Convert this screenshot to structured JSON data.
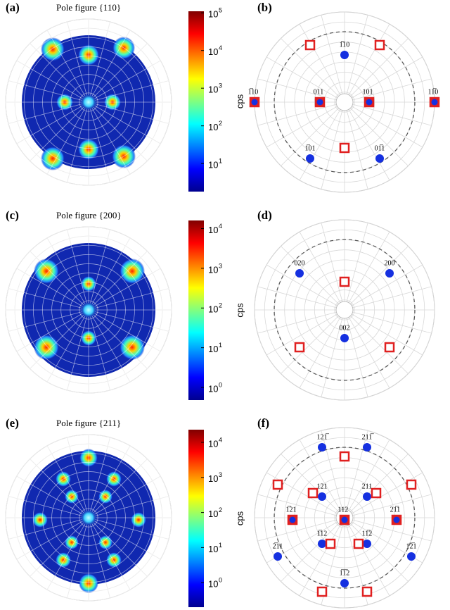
{
  "panels": [
    {
      "label": "(a)",
      "title": "Pole figure {110}",
      "colorbar": {
        "label": "cps",
        "range": [
          1.8,
          110000
        ],
        "ticks": [
          {
            "value": 10,
            "label": "10",
            "exponent": "1"
          },
          {
            "value": 100,
            "label": "10",
            "exponent": "2"
          },
          {
            "value": 1000,
            "label": "10",
            "exponent": "3"
          },
          {
            "value": 10000,
            "label": "10",
            "exponent": "4"
          },
          {
            "value": 100000,
            "label": "10",
            "exponent": "5"
          }
        ]
      }
    },
    {
      "label": "(b)",
      "markers": [
        {
          "kind": "circle",
          "text": "1̅10"
        },
        {
          "kind": "both",
          "text": "1̅10"
        },
        {
          "kind": "both",
          "text": "11̅0"
        },
        {
          "kind": "both",
          "text": "011"
        },
        {
          "kind": "both",
          "text": "101"
        },
        {
          "kind": "circle",
          "text": "1̅01"
        },
        {
          "kind": "circle",
          "text": "01̅1"
        },
        {
          "kind": "square"
        },
        {
          "kind": "square"
        },
        {
          "kind": "square"
        }
      ]
    },
    {
      "label": "(c)",
      "title": "Pole figure {200}",
      "colorbar": {
        "label": "cps",
        "range": [
          0.48,
          16000
        ],
        "ticks": [
          {
            "value": 1,
            "label": "10",
            "exponent": "0"
          },
          {
            "value": 10,
            "label": "10",
            "exponent": "1"
          },
          {
            "value": 100,
            "label": "10",
            "exponent": "2"
          },
          {
            "value": 1000,
            "label": "10",
            "exponent": "3"
          },
          {
            "value": 10000,
            "label": "10",
            "exponent": "4"
          }
        ]
      }
    },
    {
      "label": "(d)",
      "markers": [
        {
          "kind": "circle",
          "text": "020"
        },
        {
          "kind": "circle",
          "text": "200"
        },
        {
          "kind": "circle",
          "text": "002"
        },
        {
          "kind": "square"
        },
        {
          "kind": "square"
        },
        {
          "kind": "square"
        }
      ]
    },
    {
      "label": "(e)",
      "title": "Pole figure {211}",
      "colorbar": {
        "label": "cps",
        "range": [
          0.2,
          23000
        ],
        "ticks": [
          {
            "value": 1,
            "label": "10",
            "exponent": "0"
          },
          {
            "value": 10,
            "label": "10",
            "exponent": "1"
          },
          {
            "value": 100,
            "label": "10",
            "exponent": "2"
          },
          {
            "value": 1000,
            "label": "10",
            "exponent": "3"
          },
          {
            "value": 10000,
            "label": "10",
            "exponent": "4"
          }
        ]
      }
    },
    {
      "label": "(f)",
      "markers": [
        {
          "kind": "circle",
          "text": "121̅"
        },
        {
          "kind": "circle",
          "text": "211̅"
        },
        {
          "kind": "circle",
          "text": "121"
        },
        {
          "kind": "circle",
          "text": "211"
        },
        {
          "kind": "both",
          "text": "1̅21"
        },
        {
          "kind": "both",
          "text": "112"
        },
        {
          "kind": "both",
          "text": "21̅1"
        },
        {
          "kind": "circle",
          "text": "1̅12"
        },
        {
          "kind": "circle",
          "text": "11̅2"
        },
        {
          "kind": "circle",
          "text": "2̅11"
        },
        {
          "kind": "circle",
          "text": "12̅1"
        },
        {
          "kind": "circle",
          "text": "1̅1̅2"
        },
        {
          "kind": "square"
        },
        {
          "kind": "square"
        },
        {
          "kind": "square"
        },
        {
          "kind": "square"
        },
        {
          "kind": "square"
        },
        {
          "kind": "square"
        },
        {
          "kind": "square"
        },
        {
          "kind": "square"
        },
        {
          "kind": "square"
        }
      ]
    }
  ]
}
